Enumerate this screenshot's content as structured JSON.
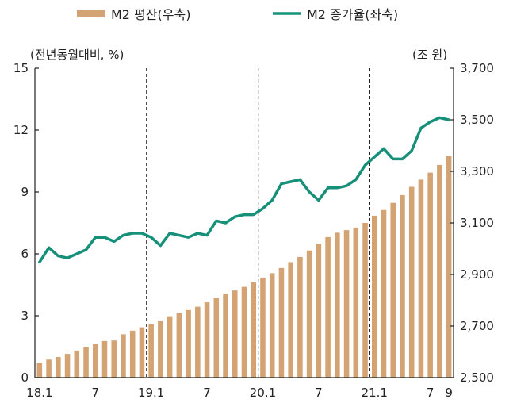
{
  "chart_data": {
    "type": "bar+line",
    "legend": [
      {
        "label": "M2 평잔(우축)",
        "mark": "bar",
        "color": "#D4A373"
      },
      {
        "label": "M2 증가율(좌축)",
        "mark": "line",
        "color": "#17907A"
      }
    ],
    "left_axis_label": "(전년동월대비, %)",
    "right_axis_label": "(조 원)",
    "left_axis": {
      "min": 0,
      "max": 15,
      "ticks": [
        0,
        3,
        6,
        9,
        12,
        15
      ],
      "tick_labels": [
        "0",
        "3",
        "6",
        "9",
        "12",
        "15"
      ]
    },
    "right_axis": {
      "min": 2500,
      "max": 3700,
      "ticks": [
        2500,
        2700,
        2900,
        3100,
        3300,
        3500,
        3700
      ],
      "tick_labels": [
        "2,500",
        "2,700",
        "2,900",
        "3,100",
        "3,300",
        "3,500",
        "3,700"
      ]
    },
    "x_tick_labels": [
      {
        "index": 0,
        "label": "18.1"
      },
      {
        "index": 6,
        "label": "7"
      },
      {
        "index": 12,
        "label": "19.1"
      },
      {
        "index": 18,
        "label": "7"
      },
      {
        "index": 24,
        "label": "20.1"
      },
      {
        "index": 30,
        "label": "7"
      },
      {
        "index": 36,
        "label": "21.1"
      },
      {
        "index": 42,
        "label": "7"
      },
      {
        "index": 44,
        "label": "9"
      }
    ],
    "year_dividers_after_index": [
      11,
      23,
      35
    ],
    "months": [
      "2018-01",
      "2018-02",
      "2018-03",
      "2018-04",
      "2018-05",
      "2018-06",
      "2018-07",
      "2018-08",
      "2018-09",
      "2018-10",
      "2018-11",
      "2018-12",
      "2019-01",
      "2019-02",
      "2019-03",
      "2019-04",
      "2019-05",
      "2019-06",
      "2019-07",
      "2019-08",
      "2019-09",
      "2019-10",
      "2019-11",
      "2019-12",
      "2020-01",
      "2020-02",
      "2020-03",
      "2020-04",
      "2020-05",
      "2020-06",
      "2020-07",
      "2020-08",
      "2020-09",
      "2020-10",
      "2020-11",
      "2020-12",
      "2021-01",
      "2021-02",
      "2021-03",
      "2021-04",
      "2021-05",
      "2021-06",
      "2021-07",
      "2021-08",
      "2021-09"
    ],
    "series": [
      {
        "name": "M2 평잔(우축)",
        "axis": "right",
        "values": [
          2557,
          2570,
          2580,
          2592,
          2605,
          2617,
          2630,
          2642,
          2644,
          2668,
          2682,
          2695,
          2708,
          2721,
          2738,
          2751,
          2762,
          2775,
          2792,
          2810,
          2825,
          2838,
          2852,
          2870,
          2888,
          2905,
          2925,
          2948,
          2968,
          2993,
          3020,
          3045,
          3062,
          3072,
          3082,
          3100,
          3128,
          3150,
          3178,
          3208,
          3240,
          3268,
          3295,
          3325,
          3360
        ]
      },
      {
        "name": "M2 증가율(좌축)",
        "axis": "left",
        "values": [
          5.6,
          6.3,
          5.9,
          5.8,
          6.0,
          6.2,
          6.8,
          6.8,
          6.6,
          6.9,
          7.0,
          7.0,
          6.8,
          6.4,
          7.0,
          6.9,
          6.8,
          7.0,
          6.9,
          7.6,
          7.5,
          7.8,
          7.9,
          7.9,
          8.2,
          8.6,
          9.4,
          9.5,
          9.6,
          9.0,
          8.6,
          9.2,
          9.2,
          9.3,
          9.6,
          10.3,
          10.7,
          11.1,
          10.6,
          10.6,
          11.0,
          12.1,
          12.4,
          12.6,
          12.5
        ]
      }
    ]
  }
}
